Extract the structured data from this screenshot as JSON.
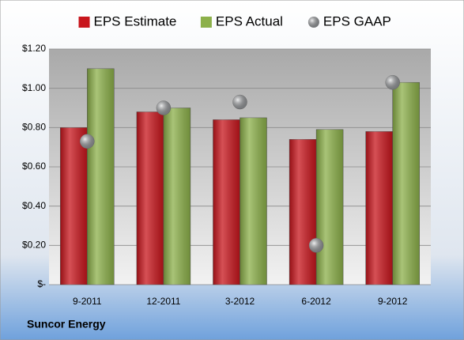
{
  "chart_data": {
    "type": "bar",
    "categories": [
      "9-2011",
      "12-2011",
      "3-2012",
      "6-2012",
      "9-2012"
    ],
    "series": [
      {
        "name": "EPS Estimate",
        "color": "#c8161d",
        "values": [
          0.8,
          0.88,
          0.84,
          0.74,
          0.78
        ]
      },
      {
        "name": "EPS Actual",
        "color": "#8cb04a",
        "values": [
          1.1,
          0.9,
          0.85,
          0.79,
          1.03
        ]
      },
      {
        "name": "EPS GAAP",
        "color": "#a9acb0",
        "type": "scatter",
        "values": [
          0.73,
          0.9,
          0.93,
          0.2,
          1.03
        ]
      }
    ],
    "ylim": [
      0,
      1.2
    ],
    "yticks": [
      {
        "value": 0,
        "label": "$-"
      },
      {
        "value": 0.2,
        "label": "$0.20"
      },
      {
        "value": 0.4,
        "label": "$0.40"
      },
      {
        "value": 0.6,
        "label": "$0.60"
      },
      {
        "value": 0.8,
        "label": "$0.80"
      },
      {
        "value": 1.0,
        "label": "$1.00"
      },
      {
        "value": 1.2,
        "label": "$1.20"
      }
    ],
    "grid": true,
    "legend": "top",
    "footer": "Suncor Energy"
  }
}
